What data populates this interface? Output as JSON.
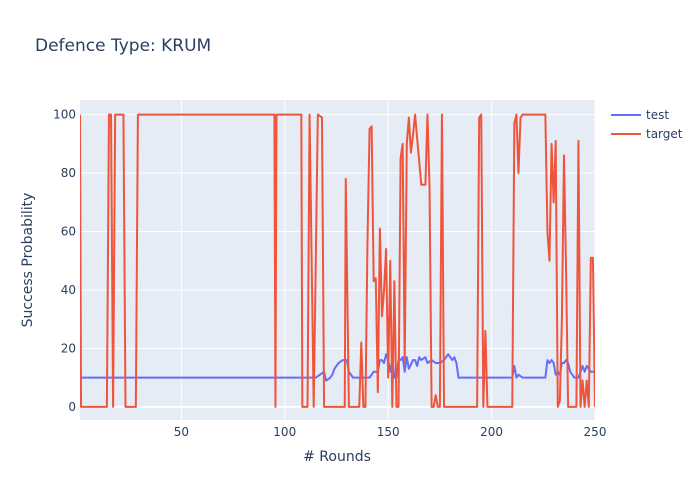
{
  "chart_data": {
    "type": "line",
    "title": "Defence Type: KRUM",
    "xlabel": "# Rounds",
    "ylabel": "Success Probability",
    "xlim": [
      1,
      250
    ],
    "ylim": [
      -4.5,
      105
    ],
    "xticks": [
      50,
      100,
      150,
      200,
      250
    ],
    "yticks": [
      0,
      20,
      40,
      60,
      80,
      100
    ],
    "grid": true,
    "legend_position": "top-right",
    "series": [
      {
        "name": "test",
        "color": "#636efa",
        "points": [
          [
            1,
            10
          ],
          [
            95,
            10
          ],
          [
            115,
            10
          ],
          [
            117,
            11
          ],
          [
            119,
            12
          ],
          [
            120,
            9
          ],
          [
            122,
            10
          ],
          [
            123,
            11
          ],
          [
            124,
            13
          ],
          [
            126,
            15
          ],
          [
            128,
            16
          ],
          [
            130,
            16
          ],
          [
            131,
            12
          ],
          [
            133,
            10
          ],
          [
            141,
            10
          ],
          [
            143,
            12
          ],
          [
            145,
            12
          ],
          [
            146,
            16
          ],
          [
            147,
            16
          ],
          [
            148,
            15
          ],
          [
            149,
            18
          ],
          [
            150,
            16
          ],
          [
            151,
            12
          ],
          [
            152,
            16
          ],
          [
            153,
            10
          ],
          [
            154,
            10
          ],
          [
            155,
            16
          ],
          [
            156,
            16
          ],
          [
            157,
            17
          ],
          [
            158,
            12
          ],
          [
            159,
            17
          ],
          [
            160,
            13
          ],
          [
            162,
            16
          ],
          [
            163,
            16
          ],
          [
            164,
            14
          ],
          [
            165,
            17
          ],
          [
            166,
            16
          ],
          [
            168,
            17
          ],
          [
            169,
            15
          ],
          [
            171,
            16
          ],
          [
            173,
            15
          ],
          [
            175,
            15
          ],
          [
            177,
            16
          ],
          [
            179,
            18
          ],
          [
            180,
            17
          ],
          [
            181,
            16
          ],
          [
            182,
            17
          ],
          [
            183,
            15
          ],
          [
            184,
            10
          ],
          [
            210,
            10
          ],
          [
            211,
            14
          ],
          [
            212,
            10
          ],
          [
            213,
            11
          ],
          [
            215,
            10
          ],
          [
            226,
            10
          ],
          [
            227,
            16
          ],
          [
            228,
            15
          ],
          [
            229,
            16
          ],
          [
            230,
            15
          ],
          [
            231,
            11
          ],
          [
            232,
            12
          ],
          [
            233,
            11
          ],
          [
            234,
            15
          ],
          [
            235,
            15
          ],
          [
            236,
            16
          ],
          [
            237,
            15
          ],
          [
            238,
            12
          ],
          [
            239,
            11
          ],
          [
            240,
            10
          ],
          [
            242,
            10
          ],
          [
            243,
            12
          ],
          [
            244,
            14
          ],
          [
            245,
            12
          ],
          [
            246,
            14
          ],
          [
            247,
            13
          ],
          [
            248,
            12
          ],
          [
            249,
            12
          ],
          [
            250,
            12
          ]
        ]
      },
      {
        "name": "target",
        "color": "#ef553b",
        "points": [
          [
            1,
            100
          ],
          [
            1.5,
            0
          ],
          [
            14,
            0
          ],
          [
            15,
            100
          ],
          [
            16,
            100
          ],
          [
            17,
            0
          ],
          [
            18,
            100
          ],
          [
            22,
            100
          ],
          [
            23,
            0
          ],
          [
            28,
            0
          ],
          [
            29,
            100
          ],
          [
            95,
            100
          ],
          [
            95.5,
            0
          ],
          [
            96,
            100
          ],
          [
            108,
            100
          ],
          [
            108.5,
            0
          ],
          [
            111,
            0
          ],
          [
            112,
            100
          ],
          [
            114,
            0
          ],
          [
            116,
            100
          ],
          [
            118,
            99
          ],
          [
            119,
            0
          ],
          [
            129,
            0
          ],
          [
            129.5,
            78
          ],
          [
            131,
            0
          ],
          [
            136,
            0
          ],
          [
            137,
            22
          ],
          [
            138,
            0
          ],
          [
            139,
            0
          ],
          [
            140,
            57
          ],
          [
            141,
            95
          ],
          [
            142,
            96
          ],
          [
            143,
            43
          ],
          [
            144,
            44
          ],
          [
            145,
            5
          ],
          [
            146,
            61
          ],
          [
            147,
            31
          ],
          [
            148,
            40
          ],
          [
            149,
            54
          ],
          [
            150,
            10
          ],
          [
            151,
            50
          ],
          [
            152,
            0
          ],
          [
            153,
            43
          ],
          [
            154,
            0
          ],
          [
            155,
            0
          ],
          [
            156,
            85
          ],
          [
            157,
            90
          ],
          [
            158,
            15
          ],
          [
            159,
            90
          ],
          [
            160,
            99
          ],
          [
            161,
            87
          ],
          [
            162,
            93
          ],
          [
            163,
            100
          ],
          [
            164,
            92
          ],
          [
            165,
            84
          ],
          [
            166,
            76
          ],
          [
            168,
            76
          ],
          [
            169,
            100
          ],
          [
            170,
            75
          ],
          [
            171,
            0
          ],
          [
            172,
            0
          ],
          [
            173,
            4
          ],
          [
            174,
            0
          ],
          [
            175,
            0
          ],
          [
            176,
            100
          ],
          [
            177,
            0
          ],
          [
            193,
            0
          ],
          [
            194,
            99
          ],
          [
            195,
            100
          ],
          [
            196,
            0
          ],
          [
            197,
            26
          ],
          [
            198,
            0
          ],
          [
            210,
            0
          ],
          [
            211,
            97
          ],
          [
            212,
            100
          ],
          [
            213,
            80
          ],
          [
            214,
            99
          ],
          [
            215,
            100
          ],
          [
            226,
            100
          ],
          [
            227,
            60
          ],
          [
            228,
            50
          ],
          [
            229,
            90
          ],
          [
            230,
            70
          ],
          [
            231,
            91
          ],
          [
            232,
            0
          ],
          [
            233,
            2
          ],
          [
            234,
            30
          ],
          [
            235,
            86
          ],
          [
            236,
            47
          ],
          [
            237,
            0
          ],
          [
            241,
            0
          ],
          [
            242,
            91
          ],
          [
            243,
            0
          ],
          [
            244,
            9
          ],
          [
            245,
            0
          ],
          [
            246,
            9
          ],
          [
            247,
            0
          ],
          [
            248,
            51
          ],
          [
            249,
            51
          ],
          [
            250,
            0
          ]
        ]
      }
    ]
  }
}
